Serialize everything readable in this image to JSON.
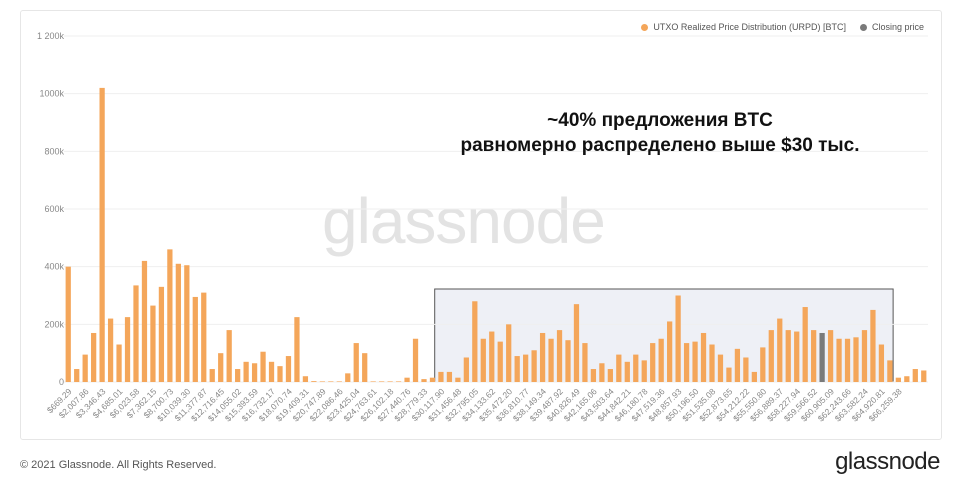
{
  "legend": {
    "urpd_label": "UTXO Realized Price Distribution (URPD) [BTC]",
    "closing_label": "Closing price"
  },
  "colors": {
    "bar": "#f4a65a",
    "closing": "#7a7a7a",
    "box_fill": "#eef0f6",
    "box_stroke": "#555555",
    "grid": "#efefef"
  },
  "annotation": {
    "line1": "~40% предложения BTC",
    "line2": "равномерно распределено выше $30 тыс."
  },
  "watermark": "glassnode",
  "footer": {
    "copyright": "© 2021 Glassnode. All Rights Reserved.",
    "logo": "glassnode"
  },
  "chart_data": {
    "type": "bar",
    "ylim": [
      0,
      1200000
    ],
    "yticks": [
      0,
      200000,
      400000,
      600000,
      800000,
      1000000,
      1200000
    ],
    "ytick_labels": [
      "0",
      "200k",
      "400k",
      "600k",
      "800k",
      "1000k",
      "1 200k"
    ],
    "xtick_labels": [
      "$669.29",
      "$2,007.86",
      "$3,346.43",
      "$4,685.01",
      "$6,023.58",
      "$7,362.15",
      "$8,700.73",
      "$10,039.30",
      "$11,377.87",
      "$12,716.45",
      "$14,055.02",
      "$15,393.59",
      "$16,732.17",
      "$18,070.74",
      "$19,409.31",
      "$20,747.89",
      "$22,086.46",
      "$23,425.04",
      "$24,763.61",
      "$26,102.18",
      "$27,440.76",
      "$28,779.33",
      "$30,117.90",
      "$31,456.48",
      "$32,795.05",
      "$34,133.62",
      "$35,472.20",
      "$36,810.77",
      "$38,149.34",
      "$39,487.92",
      "$40,826.49",
      "$42,165.06",
      "$43,503.64",
      "$44,842.21",
      "$46,180.78",
      "$47,519.36",
      "$48,857.93",
      "$50,196.50",
      "$51,535.08",
      "$52,873.65",
      "$54,212.22",
      "$55,550.80",
      "$56,889.37",
      "$58,227.94",
      "$59,566.52",
      "$60,905.09",
      "$62,243.66",
      "$63,582.24",
      "$64,920.81",
      "$66,259.38"
    ],
    "values": [
      400000,
      45000,
      95000,
      170000,
      1020000,
      220000,
      130000,
      225000,
      335000,
      420000,
      265000,
      330000,
      460000,
      410000,
      405000,
      295000,
      310000,
      45000,
      100000,
      180000,
      45000,
      70000,
      65000,
      105000,
      70000,
      55000,
      90000,
      225000,
      20000,
      3000,
      2000,
      2000,
      2000,
      30000,
      135000,
      100000,
      2000,
      2000,
      2000,
      2000,
      15000,
      150000,
      10000,
      15000,
      35000,
      35000,
      15000,
      85000,
      280000,
      150000,
      175000,
      140000,
      200000,
      90000,
      95000,
      110000,
      170000,
      150000,
      180000,
      145000,
      270000,
      135000,
      45000,
      65000,
      45000,
      95000,
      70000,
      95000,
      75000,
      135000,
      150000,
      210000,
      300000,
      135000,
      140000,
      170000,
      130000,
      95000,
      50000,
      115000,
      85000,
      35000,
      120000,
      180000,
      220000,
      180000,
      175000,
      260000,
      180000,
      170000,
      180000,
      150000,
      150000,
      155000,
      180000,
      250000,
      130000,
      75000,
      15000,
      20000,
      45000,
      40000
    ],
    "closing_price_index": 89
  }
}
